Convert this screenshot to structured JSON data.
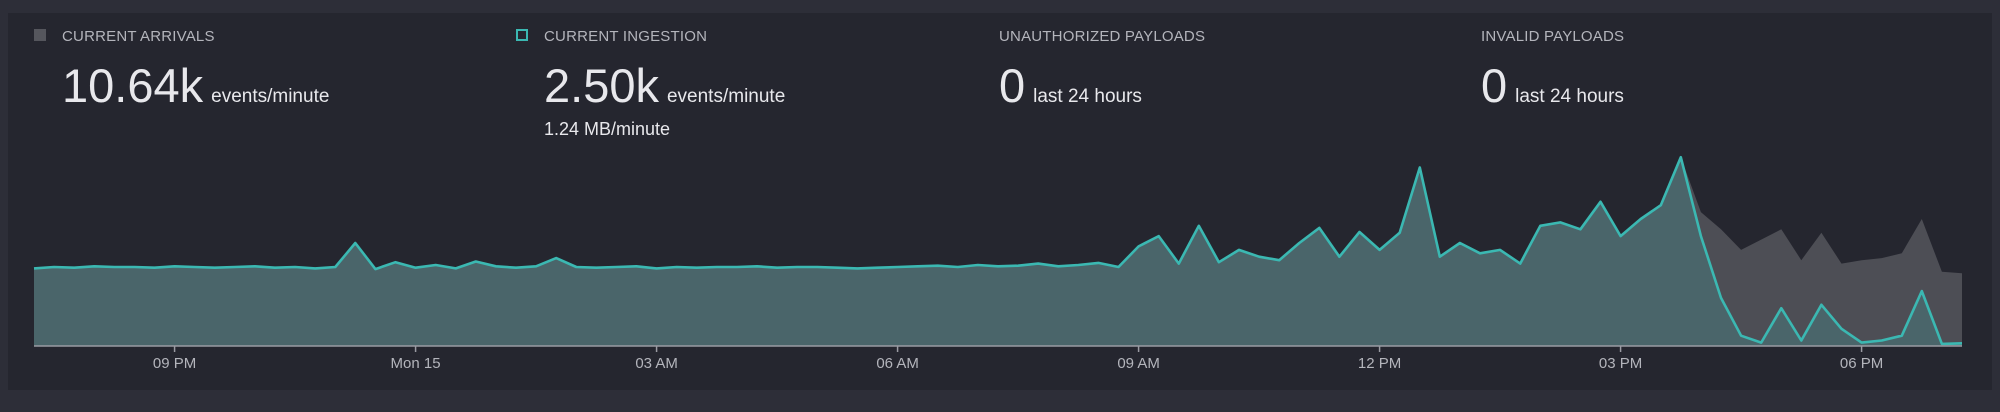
{
  "stats": [
    {
      "value": "10.64k",
      "unit": "events/minute"
    },
    {
      "value": "2.50k",
      "unit": "events/minute",
      "detail": "1.24 MB/minute"
    },
    {
      "label": "UNAUTHORIZED PAYLOADS",
      "value": 0,
      "unit": "last 24 hours"
    },
    {
      "label": "INVALID PAYLOADS",
      "value": 0,
      "unit": "last 24 hours"
    }
  ],
  "chart_data": {
    "type": "area",
    "x": [
      -4.75,
      -4.5,
      -4.25,
      -4,
      -3.75,
      -3.5,
      -3.25,
      -3,
      -2.75,
      -2.5,
      -2.25,
      -2,
      -1.75,
      -1.5,
      -1.25,
      -1,
      -0.75,
      -0.5,
      -0.25,
      0,
      0.25,
      0.5,
      0.75,
      1,
      1.25,
      1.5,
      1.75,
      2,
      2.25,
      2.5,
      2.75,
      3,
      3.25,
      3.5,
      3.75,
      4,
      4.25,
      4.5,
      4.75,
      5,
      5.25,
      5.5,
      5.75,
      6,
      6.25,
      6.5,
      6.75,
      7,
      7.25,
      7.5,
      7.75,
      8,
      8.25,
      8.5,
      8.75,
      9,
      9.25,
      9.5,
      9.75,
      10,
      10.25,
      10.5,
      10.75,
      11,
      11.25,
      11.5,
      11.75,
      12,
      12.25,
      12.5,
      12.75,
      13,
      13.25,
      13.5,
      13.75,
      14,
      14.25,
      14.5,
      14.75,
      15,
      15.25,
      15.5,
      15.75,
      16,
      16.25,
      16.5,
      16.75,
      17,
      17.25,
      17.5,
      17.75,
      18,
      18.25,
      18.5,
      18.75,
      19,
      19.25
    ],
    "xlim": [
      -4.75,
      19.25
    ],
    "xticks": [
      {
        "value": -3,
        "label": "09 PM"
      },
      {
        "value": 0,
        "label": "Mon 15"
      },
      {
        "value": 3,
        "label": "03 AM"
      },
      {
        "value": 6,
        "label": "06 AM"
      },
      {
        "value": 9,
        "label": "09 AM"
      },
      {
        "value": 12,
        "label": "12 PM"
      },
      {
        "value": 15,
        "label": "03 PM"
      },
      {
        "value": 18,
        "label": "06 PM"
      }
    ],
    "ylim": [
      0,
      30
    ],
    "series": [
      {
        "name": "CURRENT ARRIVALS",
        "color": "#55565d",
        "values": [
          11.3,
          11.5,
          11.4,
          11.6,
          11.5,
          11.5,
          11.4,
          11.6,
          11.5,
          11.4,
          11.5,
          11.6,
          11.4,
          11.5,
          11.3,
          11.5,
          15,
          11.2,
          12.2,
          11.4,
          11.8,
          11.3,
          12.3,
          11.6,
          11.4,
          11.6,
          12.8,
          11.5,
          11.4,
          11.5,
          11.6,
          11.3,
          11.5,
          11.4,
          11.5,
          11.5,
          11.6,
          11.4,
          11.5,
          11.5,
          11.4,
          11.3,
          11.4,
          11.5,
          11.6,
          11.7,
          11.5,
          11.8,
          11.6,
          11.7,
          12.0,
          11.6,
          11.8,
          12.1,
          11.5,
          14.5,
          16,
          12,
          17.5,
          12.2,
          14,
          13,
          12.5,
          15,
          17.2,
          13,
          16.6,
          14,
          16.5,
          26,
          13,
          15,
          13.5,
          14,
          12,
          17.5,
          18,
          17,
          21,
          16,
          18.5,
          20.5,
          27.5,
          19.5,
          17,
          14,
          15.5,
          17,
          12.5,
          16.5,
          12,
          12.5,
          12.8,
          13.5,
          18.5,
          10.8,
          10.6
        ]
      },
      {
        "name": "CURRENT INGESTION",
        "color": "#3bb8b2",
        "values": [
          11.3,
          11.5,
          11.4,
          11.6,
          11.5,
          11.5,
          11.4,
          11.6,
          11.5,
          11.4,
          11.5,
          11.6,
          11.4,
          11.5,
          11.3,
          11.5,
          15,
          11.2,
          12.2,
          11.4,
          11.8,
          11.3,
          12.3,
          11.6,
          11.4,
          11.6,
          12.8,
          11.5,
          11.4,
          11.5,
          11.6,
          11.3,
          11.5,
          11.4,
          11.5,
          11.5,
          11.6,
          11.4,
          11.5,
          11.5,
          11.4,
          11.3,
          11.4,
          11.5,
          11.6,
          11.7,
          11.5,
          11.8,
          11.6,
          11.7,
          12.0,
          11.6,
          11.8,
          12.1,
          11.5,
          14.5,
          16,
          12,
          17.5,
          12.2,
          14,
          13,
          12.5,
          15,
          17.2,
          13,
          16.6,
          14,
          16.5,
          26,
          13,
          15,
          13.5,
          14,
          12,
          17.5,
          18,
          17,
          21,
          16,
          18.5,
          20.5,
          27.5,
          16,
          7,
          1.5,
          0.5,
          5.5,
          0.8,
          6,
          2.5,
          0.5,
          0.8,
          1.5,
          8,
          0.3,
          0.4
        ]
      }
    ]
  }
}
